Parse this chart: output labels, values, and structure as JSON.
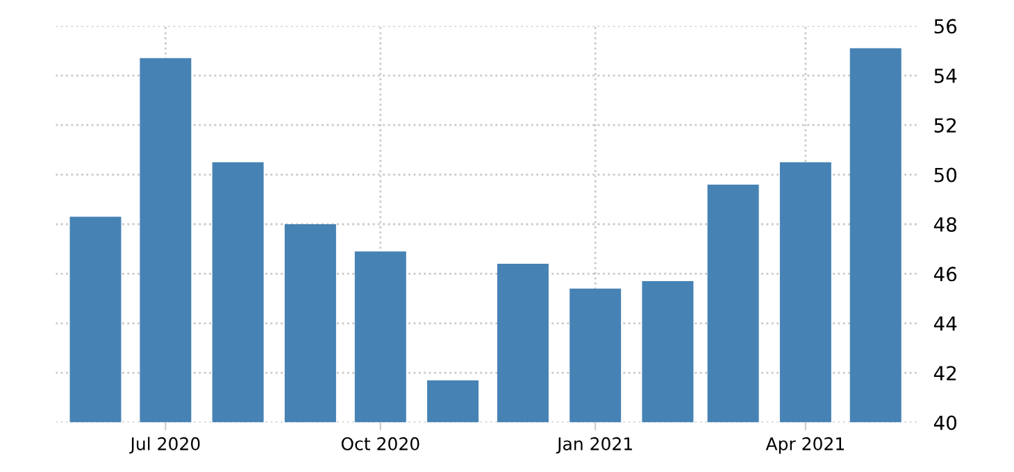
{
  "chart_data": {
    "type": "bar",
    "x": [
      "2020-06",
      "2020-07",
      "2020-08",
      "2020-09",
      "2020-10",
      "2020-11",
      "2020-12",
      "2021-01",
      "2021-02",
      "2021-03",
      "2021-04",
      "2021-05"
    ],
    "values": [
      48.3,
      54.7,
      50.5,
      48.0,
      46.9,
      41.7,
      46.4,
      45.4,
      45.7,
      49.6,
      50.5,
      55.1
    ],
    "color": "#4682b4",
    "xlim": [
      "2020-05-15",
      "2021-05-19"
    ],
    "xticks": [
      {
        "value": "2020-07",
        "label": "Jul 2020"
      },
      {
        "value": "2020-10",
        "label": "Oct 2020"
      },
      {
        "value": "2021-01",
        "label": "Jan 2021"
      },
      {
        "value": "2021-04",
        "label": "Apr 2021"
      }
    ],
    "ylim": [
      40,
      56
    ],
    "yticks": [
      40,
      42,
      44,
      46,
      48,
      50,
      52,
      54,
      56
    ],
    "grid": true
  }
}
